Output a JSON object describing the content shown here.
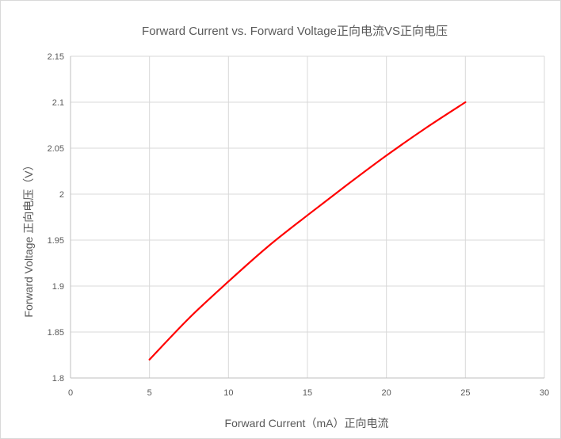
{
  "chart_data": {
    "type": "line",
    "title": "Forward Current vs. Forward Voltage正向电流VS正向电压",
    "xlabel": "Forward Current（mA）正向电流",
    "ylabel": "Forward Voltage 正向电压（V）",
    "xlim": [
      0,
      30
    ],
    "ylim": [
      1.8,
      2.15
    ],
    "x_ticks": [
      0,
      5,
      10,
      15,
      20,
      25,
      30
    ],
    "y_ticks": [
      1.8,
      1.85,
      1.9,
      1.95,
      2,
      2.05,
      2.1,
      2.15
    ],
    "x_tick_labels": [
      "0",
      "5",
      "10",
      "15",
      "20",
      "25",
      "30"
    ],
    "y_tick_labels": [
      "1.8",
      "1.85",
      "1.9",
      "1.95",
      "2",
      "2.05",
      "2.1",
      "2.15"
    ],
    "grid": true,
    "legend": "none",
    "series": [
      {
        "color": "#ff0000",
        "x": [
          5,
          7.5,
          10,
          12.5,
          15,
          17.5,
          20,
          22.5,
          25
        ],
        "y": [
          1.82,
          1.865,
          1.905,
          1.943,
          1.977,
          2.01,
          2.042,
          2.072,
          2.1
        ]
      }
    ]
  }
}
